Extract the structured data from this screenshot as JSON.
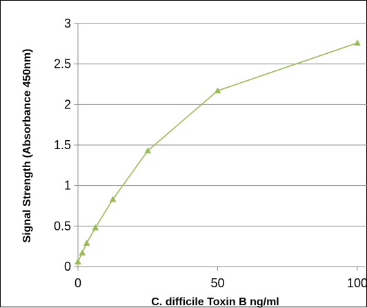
{
  "chart_data": {
    "type": "line",
    "title": "",
    "xlabel": "C. difficile  Toxin B ng/ml",
    "ylabel": "Signal Strength (Absorbance 450nm)",
    "xlim": [
      0,
      100
    ],
    "ylim": [
      0,
      3
    ],
    "x_ticks": [
      "0",
      "50",
      "100"
    ],
    "y_ticks": [
      "0",
      "0.5",
      "1",
      "1.5",
      "2",
      "2.5",
      "3"
    ],
    "grid": "horizontal",
    "legend": "none",
    "series": [
      {
        "color": "#9bbb59",
        "marker": "triangle",
        "x": [
          0,
          1.56,
          3.125,
          6.25,
          12.5,
          25,
          50,
          100
        ],
        "y": [
          0.06,
          0.17,
          0.29,
          0.48,
          0.83,
          1.43,
          2.17,
          2.76
        ]
      }
    ]
  }
}
